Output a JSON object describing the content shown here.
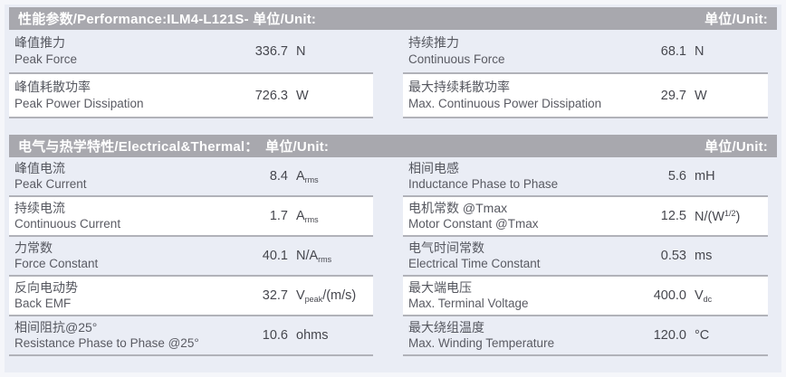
{
  "colors": {
    "header_bg": "#a8a8ae",
    "header_text": "#ffffff",
    "page_bg": "#eaedf5",
    "frame": "#f5f6fa",
    "row_white": "#ffffff",
    "border": "#b1b2b9",
    "label_text": "#55575f",
    "label_text2": "#5a5b63",
    "value_text": "#46474e"
  },
  "sections": [
    {
      "title": "性能参数/Performance:ILM4-L121S- 单位/Unit:",
      "unit_header": "单位/Unit:",
      "columns": [
        {
          "rows": [
            {
              "zh": "峰值推力",
              "en": "Peak Force",
              "value": "336.7",
              "unit": [
                {
                  "t": "N"
                }
              ]
            },
            {
              "zh": "峰值耗散功率",
              "en": "Peak Power Dissipation",
              "value": "726.3",
              "unit": [
                {
                  "t": "W"
                }
              ]
            }
          ]
        },
        {
          "rows": [
            {
              "zh": "持续推力",
              "en": "Continuous Force",
              "value": "68.1",
              "unit": [
                {
                  "t": "N"
                }
              ]
            },
            {
              "zh": "最大持续耗散功率",
              "en": "Max. Continuous Power Dissipation",
              "value": "29.7",
              "unit": [
                {
                  "t": "W"
                }
              ]
            }
          ]
        }
      ]
    },
    {
      "title": "电气与热学特性/Electrical&Thermal：　单位/Unit:",
      "unit_header": "单位/Unit:",
      "columns": [
        {
          "rows": [
            {
              "zh": "峰值电流",
              "en": "Peak Current",
              "value": "8.4",
              "unit": [
                {
                  "t": "A"
                },
                {
                  "t": "rms",
                  "sub": true
                }
              ]
            },
            {
              "zh": "持续电流",
              "en": "Continuous Current",
              "value": "1.7",
              "unit": [
                {
                  "t": "A"
                },
                {
                  "t": "rms",
                  "sub": true
                }
              ]
            },
            {
              "zh": "力常数",
              "en": "Force Constant",
              "value": "40.1",
              "unit": [
                {
                  "t": "N/A"
                },
                {
                  "t": "rms",
                  "sub": true
                }
              ]
            },
            {
              "zh": "反向电动势",
              "en": "Back EMF",
              "value": "32.7",
              "unit": [
                {
                  "t": "V"
                },
                {
                  "t": "peak",
                  "sub": true
                },
                {
                  "t": "/(m/s)"
                }
              ]
            },
            {
              "zh": "相间阻抗@25°",
              "en": "Resistance Phase to Phase @25°",
              "value": "10.6",
              "unit": [
                {
                  "t": "ohms"
                }
              ]
            }
          ]
        },
        {
          "rows": [
            {
              "zh": "相间电感",
              "en": "Inductance Phase to Phase",
              "value": "5.6",
              "unit": [
                {
                  "t": "mH"
                }
              ]
            },
            {
              "zh": "电机常数 @Tmax",
              "en": "Motor Constant @Tmax",
              "value": "12.5",
              "unit": [
                {
                  "t": "N/(W"
                },
                {
                  "t": "1/2",
                  "sup": true
                },
                {
                  "t": ")"
                }
              ]
            },
            {
              "zh": "电气时间常数",
              "en": "Electrical Time Constant",
              "value": "0.53",
              "unit": [
                {
                  "t": "ms"
                }
              ]
            },
            {
              "zh": "最大端电压",
              "en": "Max. Terminal Voltage",
              "value": "400.0",
              "unit": [
                {
                  "t": "V"
                },
                {
                  "t": "dc",
                  "sub": true
                }
              ]
            },
            {
              "zh": "最大绕组温度",
              "en": "Max. Winding Temperature",
              "value": "120.0",
              "unit": [
                {
                  "t": "°C"
                }
              ]
            }
          ]
        }
      ]
    }
  ]
}
